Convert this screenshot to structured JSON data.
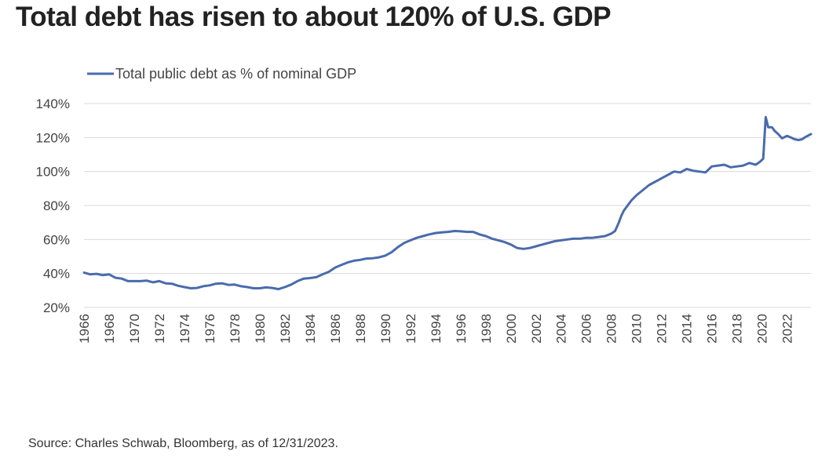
{
  "page_title": "Total debt has risen to about 120% of U.S. GDP",
  "source_note": "Source: Charles Schwab, Bloomberg, as of 12/31/2023.",
  "colors": {
    "series": "#4a6bab",
    "grid": "#d9d9d9",
    "text": "#444444"
  },
  "chart_data": {
    "type": "line",
    "legend_position": "top-left",
    "grid": true,
    "x_range": [
      1966,
      2023.9
    ],
    "ylim": [
      20,
      140
    ],
    "yticks": [
      20,
      40,
      60,
      80,
      100,
      120,
      140
    ],
    "ytick_labels": [
      "20%",
      "40%",
      "60%",
      "80%",
      "100%",
      "120%",
      "140%"
    ],
    "xticks": [
      1966,
      1968,
      1970,
      1972,
      1974,
      1976,
      1978,
      1980,
      1982,
      1984,
      1986,
      1988,
      1990,
      1992,
      1994,
      1996,
      1998,
      2000,
      2002,
      2004,
      2006,
      2008,
      2010,
      2012,
      2014,
      2016,
      2018,
      2020,
      2022
    ],
    "xtick_labels": [
      "1966",
      "1968",
      "1970",
      "1972",
      "1974",
      "1976",
      "1978",
      "1980",
      "1982",
      "1984",
      "1986",
      "1988",
      "1990",
      "1992",
      "1994",
      "1996",
      "1998",
      "2000",
      "2002",
      "2004",
      "2006",
      "2008",
      "2010",
      "2012",
      "2014",
      "2016",
      "2018",
      "2020",
      "2022"
    ],
    "series": [
      {
        "name": "Total public debt as % of nominal GDP",
        "points": [
          [
            1966.0,
            40.5
          ],
          [
            1966.5,
            39.5
          ],
          [
            1967.0,
            39.8
          ],
          [
            1967.5,
            39.0
          ],
          [
            1968.0,
            39.5
          ],
          [
            1968.5,
            37.5
          ],
          [
            1969.0,
            37.0
          ],
          [
            1969.5,
            35.5
          ],
          [
            1970.0,
            35.5
          ],
          [
            1970.5,
            35.5
          ],
          [
            1971.0,
            35.8
          ],
          [
            1971.5,
            34.8
          ],
          [
            1972.0,
            35.5
          ],
          [
            1972.5,
            34.2
          ],
          [
            1973.0,
            34.0
          ],
          [
            1973.5,
            32.8
          ],
          [
            1974.0,
            32.0
          ],
          [
            1974.5,
            31.3
          ],
          [
            1975.0,
            31.5
          ],
          [
            1975.5,
            32.5
          ],
          [
            1976.0,
            33.0
          ],
          [
            1976.5,
            34.0
          ],
          [
            1977.0,
            34.2
          ],
          [
            1977.5,
            33.3
          ],
          [
            1978.0,
            33.5
          ],
          [
            1978.5,
            32.5
          ],
          [
            1979.0,
            32.0
          ],
          [
            1979.5,
            31.3
          ],
          [
            1980.0,
            31.3
          ],
          [
            1980.5,
            31.8
          ],
          [
            1981.0,
            31.5
          ],
          [
            1981.5,
            30.8
          ],
          [
            1982.0,
            32.0
          ],
          [
            1982.5,
            33.5
          ],
          [
            1983.0,
            35.5
          ],
          [
            1983.5,
            37.0
          ],
          [
            1984.0,
            37.3
          ],
          [
            1984.5,
            37.8
          ],
          [
            1985.0,
            39.5
          ],
          [
            1985.5,
            41.0
          ],
          [
            1986.0,
            43.5
          ],
          [
            1986.5,
            45.0
          ],
          [
            1987.0,
            46.5
          ],
          [
            1987.5,
            47.5
          ],
          [
            1988.0,
            48.0
          ],
          [
            1988.5,
            48.8
          ],
          [
            1989.0,
            49.0
          ],
          [
            1989.5,
            49.5
          ],
          [
            1990.0,
            50.5
          ],
          [
            1990.5,
            52.5
          ],
          [
            1991.0,
            55.5
          ],
          [
            1991.5,
            58.0
          ],
          [
            1992.0,
            59.5
          ],
          [
            1992.5,
            61.0
          ],
          [
            1993.0,
            62.0
          ],
          [
            1993.5,
            63.0
          ],
          [
            1994.0,
            63.8
          ],
          [
            1994.5,
            64.2
          ],
          [
            1995.0,
            64.5
          ],
          [
            1995.5,
            65.0
          ],
          [
            1996.0,
            64.8
          ],
          [
            1996.5,
            64.5
          ],
          [
            1997.0,
            64.5
          ],
          [
            1997.5,
            63.0
          ],
          [
            1998.0,
            62.0
          ],
          [
            1998.5,
            60.5
          ],
          [
            1999.0,
            59.5
          ],
          [
            1999.5,
            58.5
          ],
          [
            2000.0,
            57.0
          ],
          [
            2000.5,
            55.0
          ],
          [
            2001.0,
            54.5
          ],
          [
            2001.5,
            55.0
          ],
          [
            2002.0,
            56.0
          ],
          [
            2002.5,
            57.0
          ],
          [
            2003.0,
            58.0
          ],
          [
            2003.5,
            59.0
          ],
          [
            2004.0,
            59.5
          ],
          [
            2004.5,
            60.0
          ],
          [
            2005.0,
            60.5
          ],
          [
            2005.5,
            60.5
          ],
          [
            2006.0,
            61.0
          ],
          [
            2006.5,
            61.0
          ],
          [
            2007.0,
            61.5
          ],
          [
            2007.5,
            62.0
          ],
          [
            2008.0,
            63.5
          ],
          [
            2008.3,
            65.0
          ],
          [
            2008.6,
            70.0
          ],
          [
            2008.8,
            74.0
          ],
          [
            2009.0,
            77.0
          ],
          [
            2009.3,
            80.0
          ],
          [
            2009.6,
            83.0
          ],
          [
            2010.0,
            86.0
          ],
          [
            2010.5,
            89.0
          ],
          [
            2011.0,
            92.0
          ],
          [
            2011.5,
            94.0
          ],
          [
            2012.0,
            96.0
          ],
          [
            2012.5,
            98.0
          ],
          [
            2013.0,
            100.0
          ],
          [
            2013.5,
            99.5
          ],
          [
            2014.0,
            101.5
          ],
          [
            2014.5,
            100.5
          ],
          [
            2015.0,
            100.0
          ],
          [
            2015.5,
            99.5
          ],
          [
            2016.0,
            103.0
          ],
          [
            2016.5,
            103.5
          ],
          [
            2017.0,
            104.0
          ],
          [
            2017.5,
            102.5
          ],
          [
            2018.0,
            103.0
          ],
          [
            2018.5,
            103.5
          ],
          [
            2019.0,
            105.0
          ],
          [
            2019.5,
            104.0
          ],
          [
            2019.8,
            105.5
          ],
          [
            2020.1,
            107.5
          ],
          [
            2020.3,
            132.0
          ],
          [
            2020.5,
            126.0
          ],
          [
            2020.8,
            126.0
          ],
          [
            2021.0,
            124.0
          ],
          [
            2021.3,
            122.0
          ],
          [
            2021.6,
            119.5
          ],
          [
            2022.0,
            121.0
          ],
          [
            2022.3,
            120.0
          ],
          [
            2022.6,
            119.0
          ],
          [
            2022.9,
            118.5
          ],
          [
            2023.2,
            119.0
          ],
          [
            2023.5,
            120.5
          ],
          [
            2023.9,
            122.0
          ]
        ]
      }
    ]
  }
}
